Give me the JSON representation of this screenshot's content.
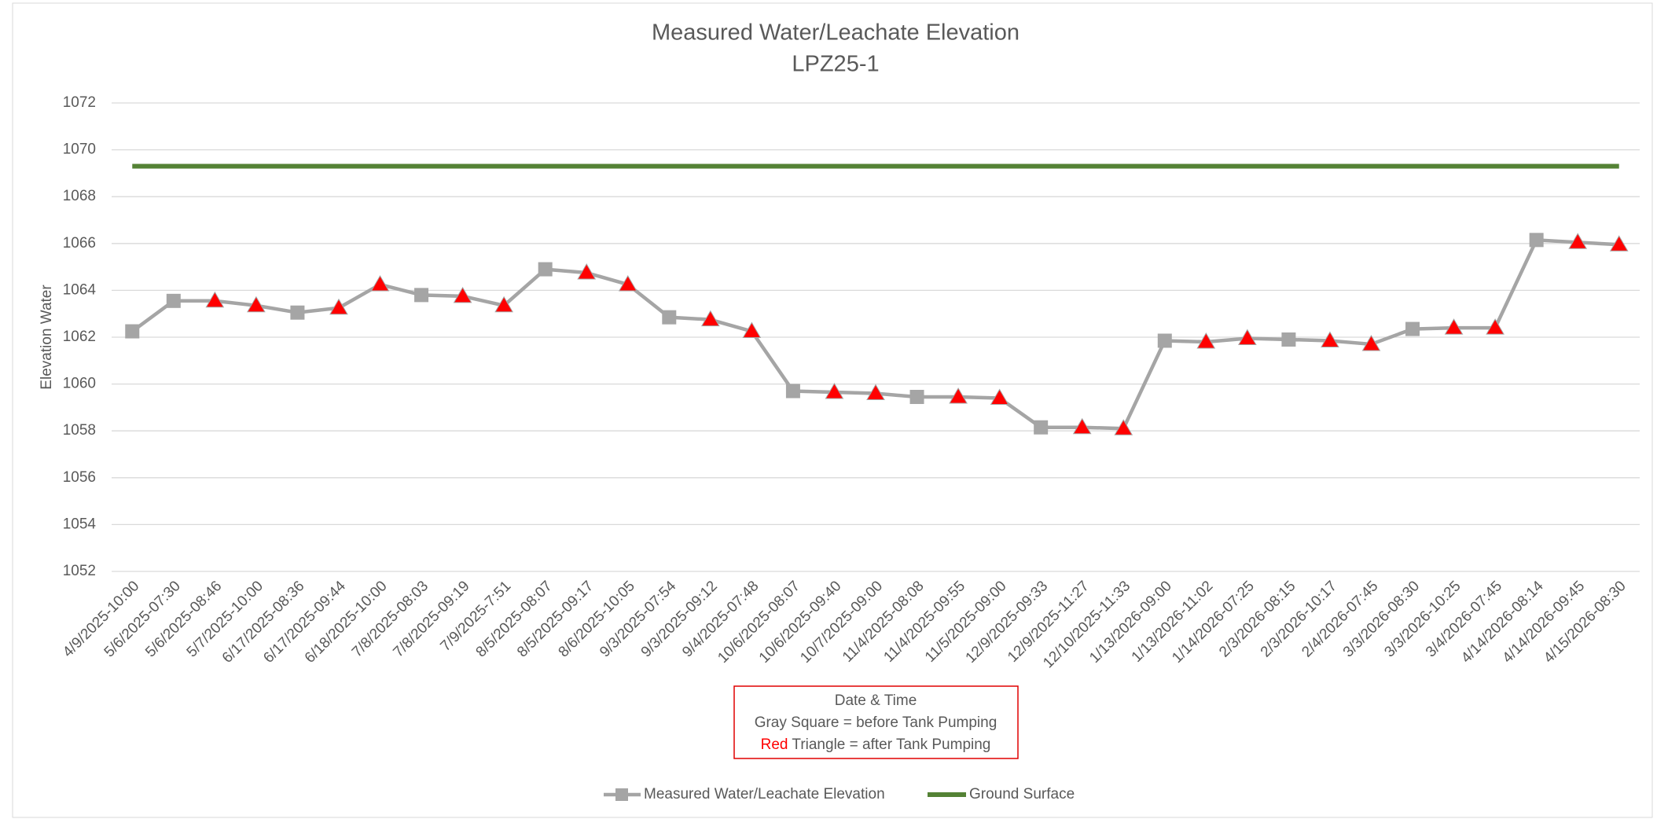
{
  "chart_data": {
    "type": "line",
    "title": "Measured Water/Leachate Elevation",
    "subtitle": "LPZ25-1",
    "ylabel": "Elevation Water",
    "annotation": {
      "lines": [
        "Date & Time",
        "Gray Square  = before Tank Pumping"
      ],
      "last_line": {
        "red": "Red",
        "rest": " Triangle = after Tank Pumping"
      }
    },
    "categories": [
      "4/9/2025-10:00",
      "5/6/2025-07:30",
      "5/6/2025-08:46",
      "5/7/2025-10:00",
      "6/17/2025-08:36",
      "6/17/2025-09:44",
      "6/18/2025-10:00",
      "7/8/2025-08:03",
      "7/8/2025-09:19",
      "7/9/2025-7:51",
      "8/5/2025-08:07",
      "8/5/2025-09:17",
      "8/6/2025-10:05",
      "9/3/2025-07:54",
      "9/3/2025-09:12",
      "9/4/2025-07:48",
      "10/6/2025-08:07",
      "10/6/2025-09:40",
      "10/7/2025-09:00",
      "11/4/2025-08:08",
      "11/4/2025-09:55",
      "11/5/2025-09:00",
      "12/9/2025-09:33",
      "12/9/2025-11:27",
      "12/10/2025-11:33",
      "1/13/2026-09:00",
      "1/13/2026-11:02",
      "1/14/2026-07:25",
      "2/3/2026-08:15",
      "2/3/2026-10:17",
      "2/4/2026-07:45",
      "3/3/2026-08:30",
      "3/3/2026-10:25",
      "3/4/2026-07:45",
      "4/14/2026-08:14",
      "4/14/2026-09:45",
      "4/15/2026-08:30"
    ],
    "series": [
      {
        "name": "Measured Water/Leachate Elevation",
        "color": "#a5a5a5",
        "marker_color_after": "#ff0000",
        "values": [
          1062.25,
          1063.55,
          1063.55,
          1063.35,
          1063.05,
          1063.25,
          1064.25,
          1063.8,
          1063.75,
          1063.35,
          1064.9,
          1064.75,
          1064.25,
          1062.85,
          1062.75,
          1062.25,
          1059.7,
          1059.65,
          1059.6,
          1059.45,
          1059.45,
          1059.4,
          1058.15,
          1058.15,
          1058.1,
          1061.85,
          1061.8,
          1061.95,
          1061.9,
          1061.85,
          1061.7,
          1062.35,
          1062.4,
          1062.4,
          1066.15,
          1066.05,
          1065.95
        ],
        "markers": [
          "square",
          "square",
          "triangle",
          "triangle",
          "square",
          "triangle",
          "triangle",
          "square",
          "triangle",
          "triangle",
          "square",
          "triangle",
          "triangle",
          "square",
          "triangle",
          "triangle",
          "square",
          "triangle",
          "triangle",
          "square",
          "triangle",
          "triangle",
          "square",
          "triangle",
          "triangle",
          "square",
          "triangle",
          "triangle",
          "square",
          "triangle",
          "triangle",
          "square",
          "triangle",
          "triangle",
          "square",
          "triangle",
          "triangle"
        ]
      },
      {
        "name": "Ground Surface",
        "color": "#548235",
        "values": [
          1069.3,
          1069.3,
          1069.3,
          1069.3,
          1069.3,
          1069.3,
          1069.3,
          1069.3,
          1069.3,
          1069.3,
          1069.3,
          1069.3,
          1069.3,
          1069.3,
          1069.3,
          1069.3,
          1069.3,
          1069.3,
          1069.3,
          1069.3,
          1069.3,
          1069.3,
          1069.3,
          1069.3,
          1069.3,
          1069.3,
          1069.3,
          1069.3,
          1069.3,
          1069.3,
          1069.3,
          1069.3,
          1069.3,
          1069.3,
          1069.3,
          1069.3,
          1069.3
        ]
      }
    ],
    "ylim": [
      1052,
      1072
    ],
    "yticks": [
      1052,
      1054,
      1056,
      1058,
      1060,
      1062,
      1064,
      1066,
      1068,
      1070,
      1072
    ],
    "grid": true,
    "legend": "bottom"
  }
}
